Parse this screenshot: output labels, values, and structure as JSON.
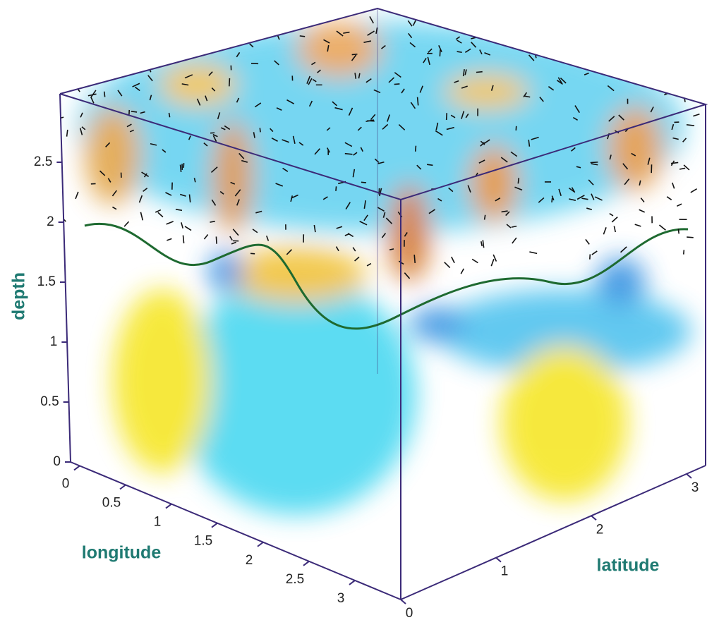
{
  "chart_data": {
    "type": "volume3d",
    "xlabel": "longitude",
    "ylabel": "latitude",
    "zlabel": "depth",
    "xlim": [
      -0.1,
      3.5
    ],
    "xticks": [
      0,
      0.5,
      1,
      1.5,
      2,
      2.5,
      3
    ],
    "ylim": [
      0,
      3.2
    ],
    "yticks": [
      0,
      1,
      2,
      3
    ],
    "zlim": [
      0,
      3
    ],
    "zticks": [
      0,
      0.5,
      1,
      1.5,
      2,
      2.5
    ]
  }
}
